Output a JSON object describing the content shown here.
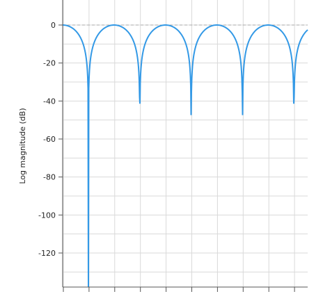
{
  "chart_data": {
    "type": "line",
    "title": "",
    "xlabel": "",
    "ylabel": "Log magnitude (dB)",
    "ylim": [
      -140,
      10
    ],
    "y_ticks": [
      0,
      -20,
      -40,
      -60,
      -80,
      -100,
      -120
    ],
    "y_tick_labels": [
      "0",
      "-20",
      "-40",
      "-60",
      "-80",
      "-100",
      "-120"
    ],
    "grid": true,
    "reference_line_db": 0,
    "series": [
      {
        "color": "#3399e6",
        "description_points": {
          "x_nulls_normalized": [
            0.125,
            0.375,
            0.625,
            0.875,
            1.125
          ],
          "peak_db": 0,
          "null_db": -140
        }
      }
    ]
  },
  "colors": {
    "line": "#3399e6",
    "grid": "#d9d9d9",
    "axis": "#555555",
    "reference": "#aaaaaa"
  }
}
